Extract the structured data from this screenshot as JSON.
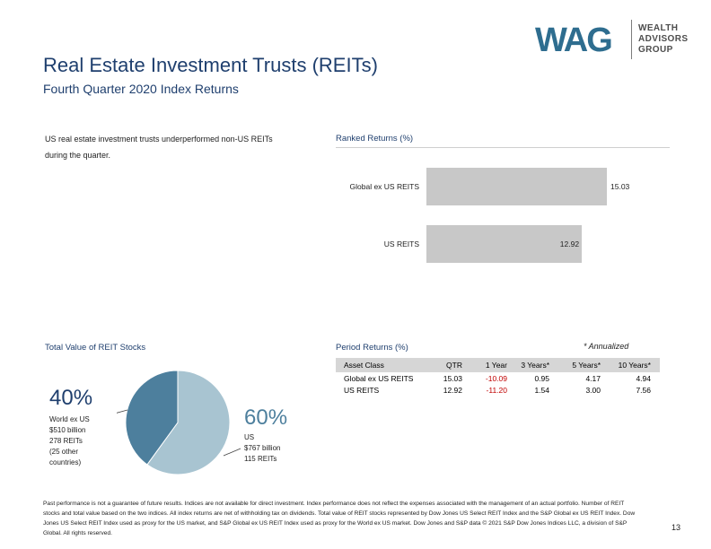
{
  "header": {
    "title": "Real Estate Investment Trusts (REITs)",
    "subtitle": "Fourth Quarter 2020 Index Returns"
  },
  "logo": {
    "mark": "WAG",
    "text_lines": [
      "WEALTH",
      "ADVISORS",
      "GROUP"
    ],
    "colors": {
      "mark": "#2e6d8f",
      "text": "#4d4d4d"
    }
  },
  "intro_text": "US real estate investment trusts underperformed non-US REITs during the quarter.",
  "chart_data": [
    {
      "type": "bar",
      "orientation": "horizontal",
      "title": "Ranked Returns (%)",
      "categories": [
        "Global ex US REITS",
        "US REITS"
      ],
      "values": [
        15.03,
        12.92
      ],
      "value_labels": [
        "15.03",
        "12.92"
      ],
      "xlim": [
        0,
        16
      ],
      "colors": {
        "bar": "#c8c8c8"
      }
    },
    {
      "type": "pie",
      "title": "Total Value of REIT Stocks",
      "slices": [
        {
          "name": "World ex US",
          "value": 40,
          "percent_label": "40%",
          "details": [
            "World ex US",
            "$510 billion",
            "278 REITs",
            "(25 other",
            "countries)"
          ],
          "color": "#4d7f9d"
        },
        {
          "name": "US",
          "value": 60,
          "percent_label": "60%",
          "details": [
            "US",
            "$767 billion",
            "115 REITs"
          ],
          "color": "#a8c4d1"
        }
      ]
    },
    {
      "type": "table",
      "title": "Period Returns (%)",
      "note": "* Annualized",
      "columns": [
        "Asset Class",
        "QTR",
        "1 Year",
        "3 Years*",
        "5 Years*",
        "10 Years*"
      ],
      "rows": [
        [
          "Global ex US REITS",
          "15.03",
          "-10.09",
          "0.95",
          "4.17",
          "4.94"
        ],
        [
          "US REITS",
          "12.92",
          "-11.20",
          "1.54",
          "3.00",
          "7.56"
        ]
      ],
      "colors": {
        "negative": "#c00000",
        "header_bg": "#d6d6d6"
      }
    }
  ],
  "footnote": "Past performance is not a guarantee of future results. Indices are not available for direct investment. Index performance does not reflect the expenses associated with the management of an actual portfolio. Number of REIT stocks and total value based on the two indices. All index returns are net of withholding tax on dividends. Total value of REIT stocks represented by Dow Jones US Select REIT Index and the S&P Global ex US REIT Index. Dow Jones US Select REIT Index used as proxy for the US market, and S&P Global ex US REIT Index used as proxy for the World ex US market. Dow Jones and S&P data © 2021 S&P Dow Jones Indices LLC, a division of S&P Global. All rights reserved.",
  "page_number": "13"
}
